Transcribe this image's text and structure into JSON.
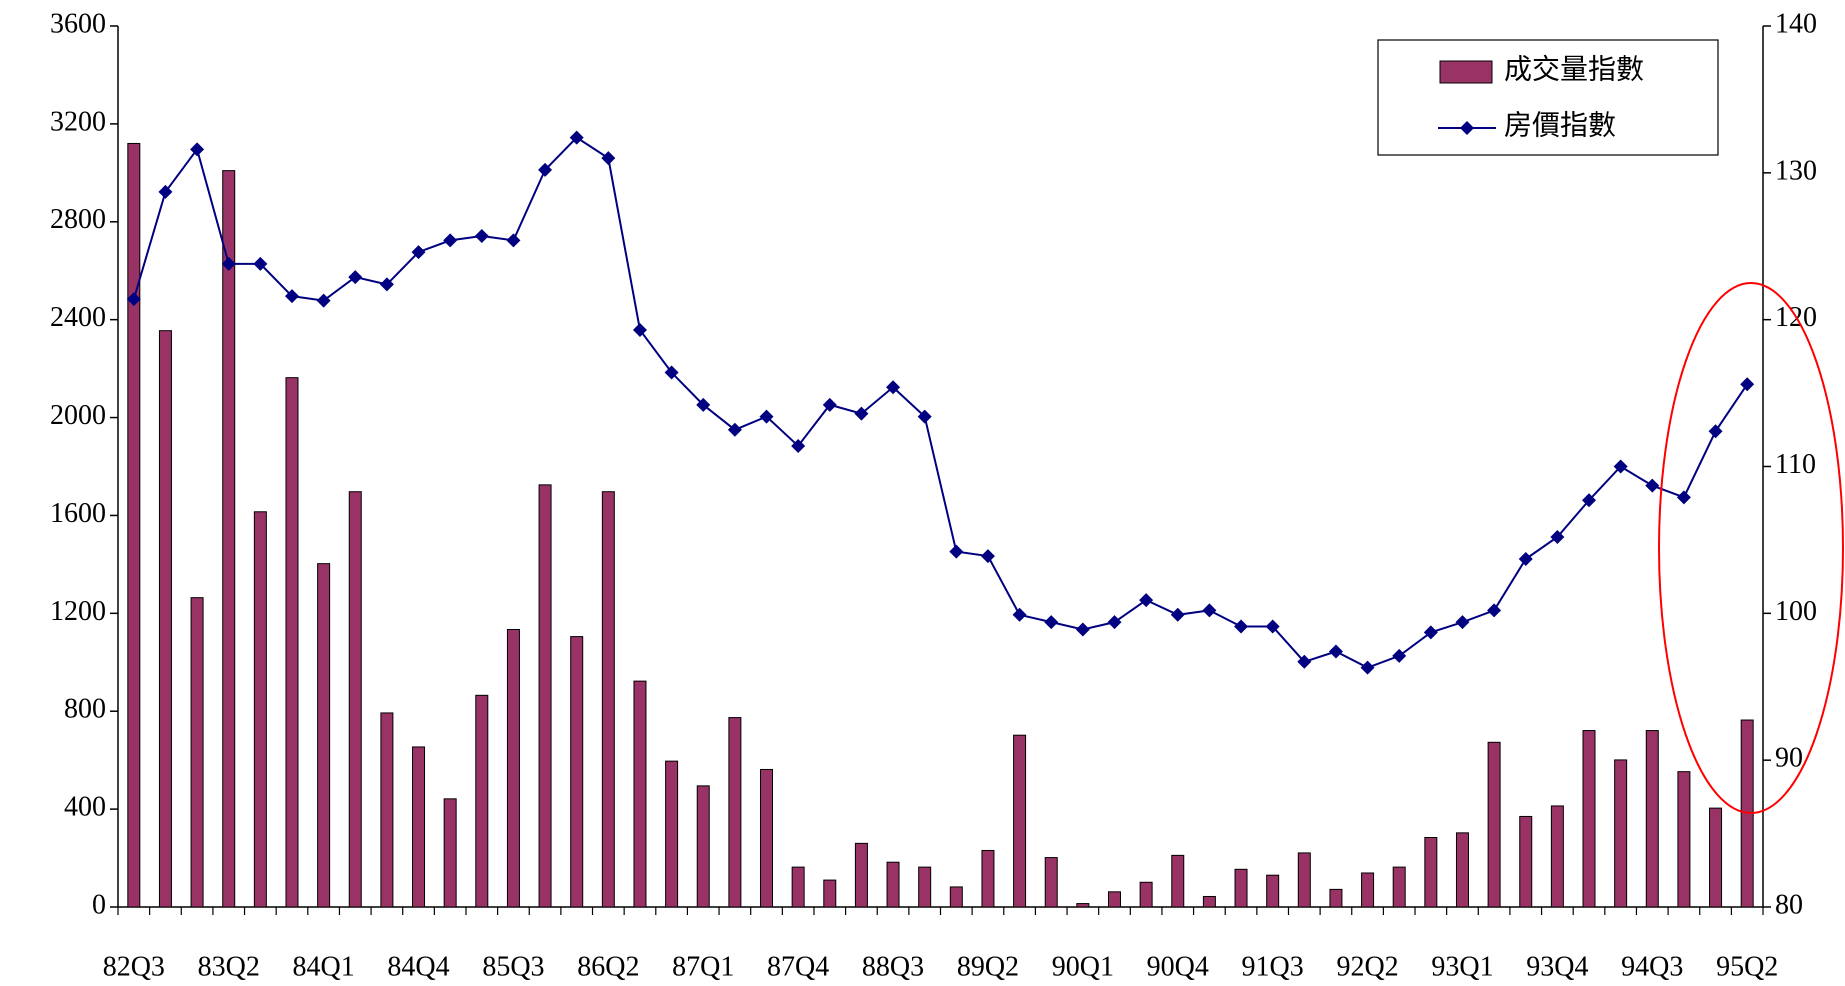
{
  "chart_data": {
    "type": "bar",
    "categories": [
      "82Q3",
      null,
      null,
      "83Q2",
      null,
      null,
      "84Q1",
      null,
      null,
      "84Q4",
      null,
      null,
      "85Q3",
      null,
      null,
      "86Q2",
      null,
      null,
      "87Q1",
      null,
      null,
      "87Q4",
      null,
      null,
      "88Q3",
      null,
      null,
      "89Q2",
      null,
      null,
      "90Q1",
      null,
      null,
      "90Q4",
      null,
      null,
      "91Q3",
      null,
      null,
      "92Q2",
      null,
      null,
      "93Q1",
      null,
      null,
      "93Q4",
      null,
      null,
      "94Q3",
      null,
      null,
      "95Q2"
    ],
    "series": [
      {
        "name": "成交量指數",
        "type": "bar",
        "color": "#993366",
        "axis": "y",
        "values": [
          3120,
          2355,
          1264,
          3009,
          1615,
          2163,
          1403,
          1697,
          793,
          654,
          442,
          865,
          1134,
          1725,
          1105,
          1697,
          923,
          596,
          495,
          774,
          562,
          163,
          110,
          260,
          183,
          163,
          82,
          231,
          702,
          202,
          14,
          62,
          101,
          211,
          43,
          154,
          130,
          221,
          72,
          139,
          163,
          284,
          303,
          673,
          370,
          413,
          721,
          601,
          721,
          553,
          404,
          764
        ]
      },
      {
        "name": "房價指數",
        "type": "line",
        "color": "#000080",
        "axis": "y2",
        "values": [
          121.4,
          128.7,
          131.6,
          123.8,
          123.8,
          121.6,
          121.3,
          122.9,
          122.4,
          124.6,
          125.4,
          125.7,
          125.4,
          130.2,
          132.4,
          131.0,
          119.3,
          116.4,
          114.2,
          112.5,
          113.4,
          111.4,
          114.2,
          113.6,
          115.4,
          113.4,
          104.2,
          103.9,
          99.9,
          99.4,
          98.9,
          99.4,
          100.9,
          99.9,
          100.2,
          99.1,
          99.1,
          96.7,
          97.4,
          96.3,
          97.1,
          98.7,
          99.4,
          100.2,
          103.7,
          105.2,
          107.7,
          110.0,
          108.7,
          107.9,
          112.4,
          115.6
        ]
      }
    ],
    "ylim": [
      0,
      3600
    ],
    "yticks": [
      0,
      400,
      800,
      1200,
      1600,
      2000,
      2400,
      2800,
      3200,
      3600
    ],
    "y2lim": [
      80,
      140
    ],
    "y2ticks": [
      80,
      90,
      100,
      110,
      120,
      130,
      140
    ],
    "legend": "upper right"
  }
}
